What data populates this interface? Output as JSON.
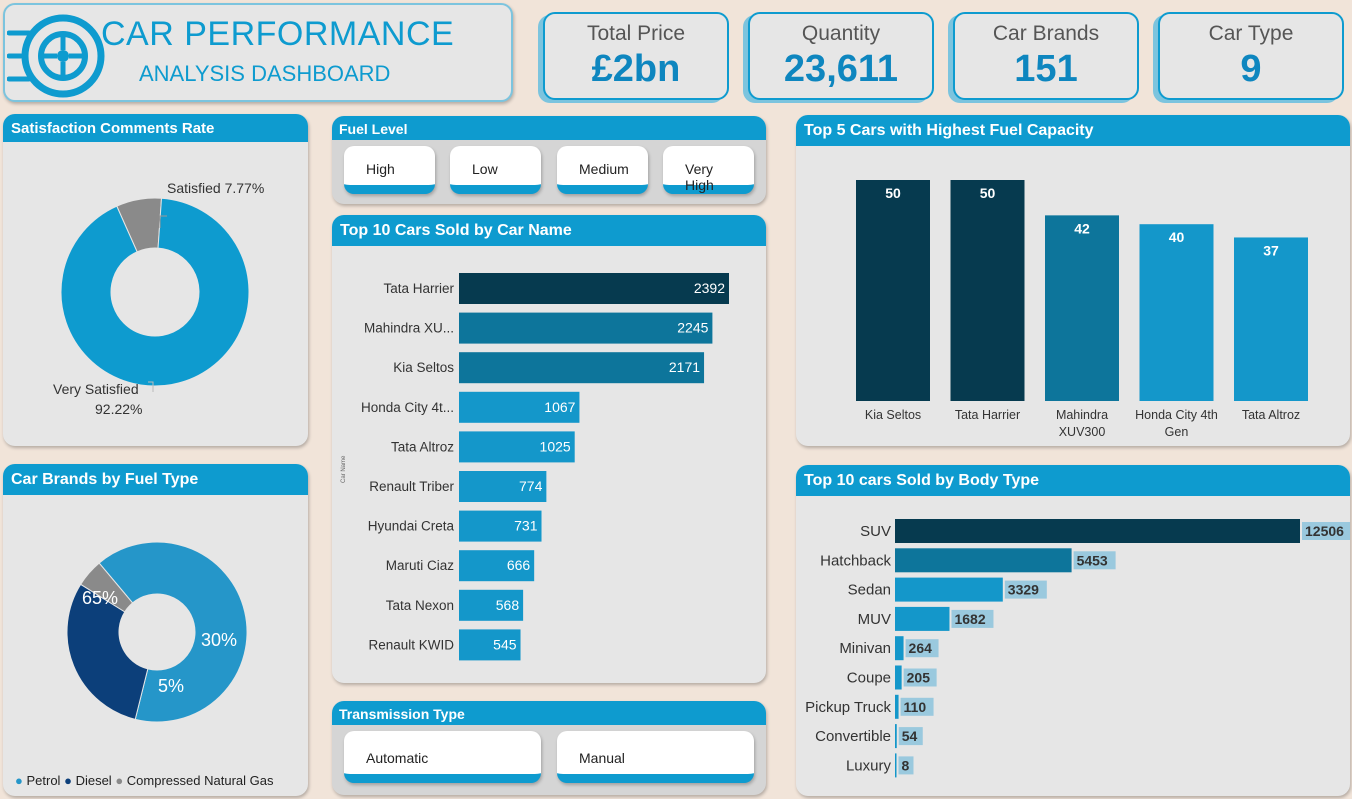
{
  "title": {
    "line1": "CAR PERFORMANCE",
    "line2": "ANALYSIS DASHBOARD"
  },
  "kpis": [
    {
      "label": "Total Price",
      "value": "£2bn"
    },
    {
      "label": "Quantity",
      "value": "23,611"
    },
    {
      "label": "Car Brands",
      "value": "151"
    },
    {
      "label": "Car Type",
      "value": "9"
    }
  ],
  "satisfaction": {
    "title": "Satisfaction Comments Rate",
    "label_satisfied": "Satisfied 7.77%",
    "label_very_line1": "Very Satisfied",
    "label_very_line2": "92.22%"
  },
  "fuel_level": {
    "title": "Fuel Level",
    "options": [
      "High",
      "Low",
      "Medium",
      "Very High"
    ]
  },
  "transmission": {
    "title": "Transmission Type",
    "options": [
      "Automatic",
      "Manual"
    ]
  },
  "brands_fuel": {
    "title": "Car Brands by Fuel Type",
    "legend": [
      "Petrol",
      "Diesel",
      "Compressed Natural Gas"
    ]
  },
  "top10_name": {
    "title": "Top 10 Cars Sold by Car Name",
    "axis_label": "Car Name"
  },
  "top5_fuel": {
    "title": "Top 5 Cars with Highest Fuel Capacity"
  },
  "top10_body": {
    "title": "Top 10 cars Sold by Body Type"
  },
  "colors": {
    "accent": "#0e9bcf",
    "dark": "#063a4f",
    "mid": "#0d759b",
    "light": "#1497ca",
    "grey": "#8a8a8a",
    "diesel": "#0c3f7a"
  },
  "chart_data": [
    {
      "id": "satisfaction",
      "type": "pie",
      "categories": [
        "Satisfied",
        "Very Satisfied"
      ],
      "values": [
        7.77,
        92.22
      ]
    },
    {
      "id": "fuel_type",
      "type": "pie",
      "categories": [
        "Petrol",
        "Diesel",
        "Compressed Natural Gas"
      ],
      "values": [
        65,
        30,
        5
      ],
      "labels": [
        "65%",
        "30%",
        "5%"
      ]
    },
    {
      "id": "top10_name",
      "type": "bar",
      "categories": [
        "Tata Harrier",
        "Mahindra XU...",
        "Kia Seltos",
        "Honda City 4t...",
        "Tata Altroz",
        "Renault Triber",
        "Hyundai Creta",
        "Maruti Ciaz",
        "Tata Nexon",
        "Renault KWID"
      ],
      "values": [
        2392,
        2245,
        2171,
        1067,
        1025,
        774,
        731,
        666,
        568,
        545
      ]
    },
    {
      "id": "top5_fuel",
      "type": "bar",
      "categories": [
        "Kia Seltos",
        "Tata Harrier",
        "Mahindra XUV300",
        "Honda City 4th Gen",
        "Tata Altroz"
      ],
      "values": [
        50,
        50,
        42,
        40,
        37
      ]
    },
    {
      "id": "top10_body",
      "type": "bar",
      "categories": [
        "SUV",
        "Hatchback",
        "Sedan",
        "MUV",
        "Minivan",
        "Coupe",
        "Pickup Truck",
        "Convertible",
        "Luxury"
      ],
      "values": [
        12506,
        5453,
        3329,
        1682,
        264,
        205,
        110,
        54,
        8
      ]
    }
  ]
}
